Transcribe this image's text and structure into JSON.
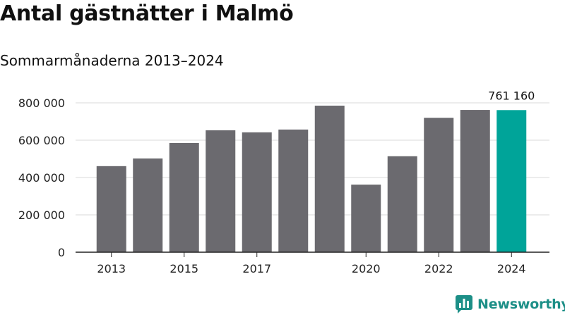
{
  "header": {
    "title": "Antal gästnätter i Malmö",
    "subtitle": "Sommarmånaderna 2013–2024"
  },
  "branding": {
    "name": "Newsworthy",
    "color": "#1c8f87",
    "icon": "newsworthy-logo-icon"
  },
  "colors": {
    "bar": "#6b6a6f",
    "highlight": "#00a499",
    "grid": "#d9d9d9",
    "axis": "#222222"
  },
  "chart_data": {
    "type": "bar",
    "title": "Antal gästnätter i Malmö",
    "subtitle": "Sommarmånaderna 2013–2024",
    "xlabel": "",
    "ylabel": "",
    "categories": [
      "2013",
      "2014",
      "2015",
      "2016",
      "2017",
      "2018",
      "2019",
      "2020",
      "2021",
      "2022",
      "2023",
      "2024"
    ],
    "values": [
      461000,
      502000,
      585000,
      653000,
      642000,
      657000,
      785000,
      362000,
      514000,
      720000,
      762000,
      761160
    ],
    "highlight_index": 11,
    "data_labels": [
      {
        "index": 11,
        "text": "761 160"
      }
    ],
    "x_tick_labels": [
      "2013",
      "",
      "2015",
      "",
      "2017",
      "",
      "",
      "2020",
      "",
      "2022",
      "",
      "2024"
    ],
    "y_ticks": [
      0,
      200000,
      400000,
      600000,
      800000
    ],
    "y_tick_labels": [
      "0",
      "200 000",
      "400 000",
      "600 000",
      "800 000"
    ],
    "ylim": [
      0,
      800000
    ],
    "grid": true,
    "legend": "none"
  }
}
